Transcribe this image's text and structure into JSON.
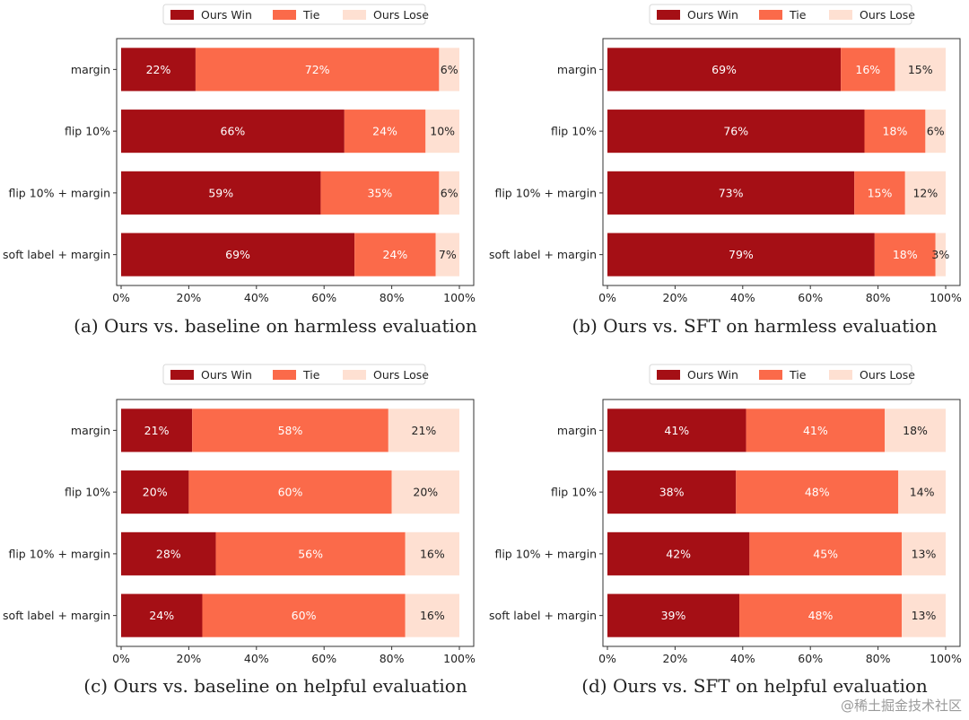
{
  "colors": {
    "win": "#a50f15",
    "tie": "#fb6a4a",
    "lose": "#fee0d2",
    "frame": "#333333"
  },
  "watermark": "@稀土掘金技术社区",
  "chart_data": [
    {
      "type": "bar",
      "orientation": "horizontal",
      "stacked": true,
      "caption": "(a) Ours vs. baseline on harmless evaluation",
      "categories": [
        "margin",
        "flip 10%",
        "flip 10% + margin",
        "soft label + margin"
      ],
      "series": [
        {
          "name": "Ours Win",
          "values": [
            22,
            66,
            59,
            69
          ]
        },
        {
          "name": "Tie",
          "values": [
            72,
            24,
            35,
            24
          ]
        },
        {
          "name": "Ours Lose",
          "values": [
            6,
            10,
            6,
            7
          ]
        }
      ],
      "xlim": [
        0,
        100
      ],
      "xticks": [
        "0%",
        "20%",
        "40%",
        "60%",
        "80%",
        "100%"
      ],
      "legend": "top-center"
    },
    {
      "type": "bar",
      "orientation": "horizontal",
      "stacked": true,
      "caption": "(b) Ours vs. SFT on harmless evaluation",
      "categories": [
        "margin",
        "flip 10%",
        "flip 10% + margin",
        "soft label + margin"
      ],
      "series": [
        {
          "name": "Ours Win",
          "values": [
            69,
            76,
            73,
            79
          ]
        },
        {
          "name": "Tie",
          "values": [
            16,
            18,
            15,
            18
          ]
        },
        {
          "name": "Ours Lose",
          "values": [
            15,
            6,
            12,
            3
          ]
        }
      ],
      "xlim": [
        0,
        100
      ],
      "xticks": [
        "0%",
        "20%",
        "40%",
        "60%",
        "80%",
        "100%"
      ],
      "legend": "top-center"
    },
    {
      "type": "bar",
      "orientation": "horizontal",
      "stacked": true,
      "caption": "(c) Ours vs. baseline on helpful evaluation",
      "categories": [
        "margin",
        "flip 10%",
        "flip 10% + margin",
        "soft label + margin"
      ],
      "series": [
        {
          "name": "Ours Win",
          "values": [
            21,
            20,
            28,
            24
          ]
        },
        {
          "name": "Tie",
          "values": [
            58,
            60,
            56,
            60
          ]
        },
        {
          "name": "Ours Lose",
          "values": [
            21,
            20,
            16,
            16
          ]
        }
      ],
      "xlim": [
        0,
        100
      ],
      "xticks": [
        "0%",
        "20%",
        "40%",
        "60%",
        "80%",
        "100%"
      ],
      "legend": "top-center"
    },
    {
      "type": "bar",
      "orientation": "horizontal",
      "stacked": true,
      "caption": "(d) Ours vs. SFT on helpful evaluation",
      "categories": [
        "margin",
        "flip 10%",
        "flip 10% + margin",
        "soft label + margin"
      ],
      "series": [
        {
          "name": "Ours Win",
          "values": [
            41,
            38,
            42,
            39
          ]
        },
        {
          "name": "Tie",
          "values": [
            41,
            48,
            45,
            48
          ]
        },
        {
          "name": "Ours Lose",
          "values": [
            18,
            14,
            13,
            13
          ]
        }
      ],
      "xlim": [
        0,
        100
      ],
      "xticks": [
        "0%",
        "20%",
        "40%",
        "60%",
        "80%",
        "100%"
      ],
      "legend": "top-center"
    }
  ]
}
